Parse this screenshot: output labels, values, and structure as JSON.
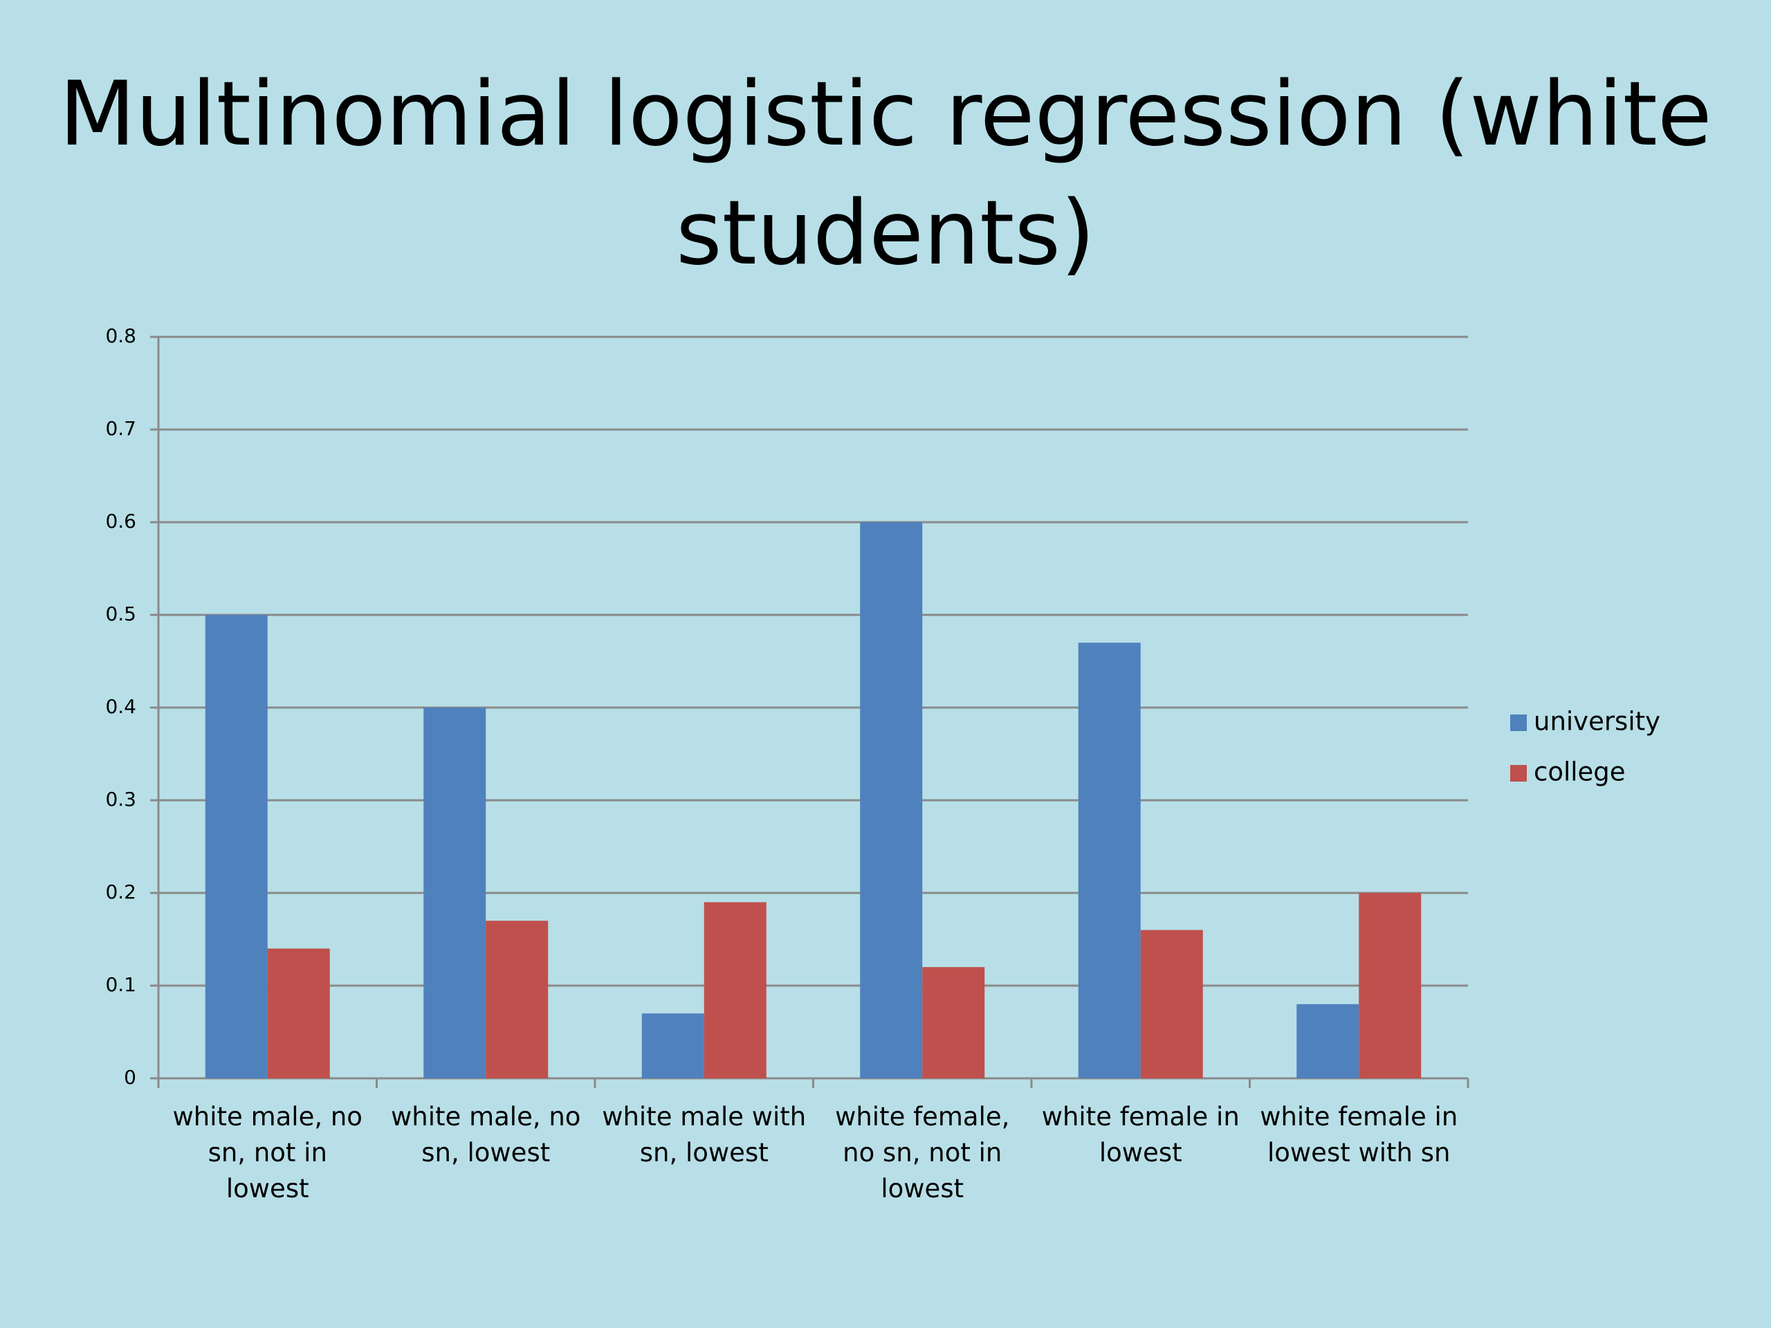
{
  "chart_data": {
    "type": "bar",
    "title": "Multinomial logistic regression (white students)",
    "categories": [
      "white male, no sn, not in lowest",
      "white male, no sn, lowest",
      "white male with sn, lowest",
      "white female, no sn, not in lowest",
      "white female in lowest",
      "white female in lowest with sn"
    ],
    "series": [
      {
        "name": "university",
        "color": "#4f81bd",
        "values": [
          0.5,
          0.4,
          0.07,
          0.6,
          0.47,
          0.08
        ]
      },
      {
        "name": "college",
        "color": "#c0504d",
        "values": [
          0.14,
          0.17,
          0.19,
          0.12,
          0.16,
          0.2
        ]
      }
    ],
    "ylim": [
      0,
      0.8
    ],
    "yticks": [
      0,
      0.1,
      0.2,
      0.3,
      0.4,
      0.5,
      0.6,
      0.7,
      0.8
    ],
    "grid": true,
    "legend": "right"
  }
}
